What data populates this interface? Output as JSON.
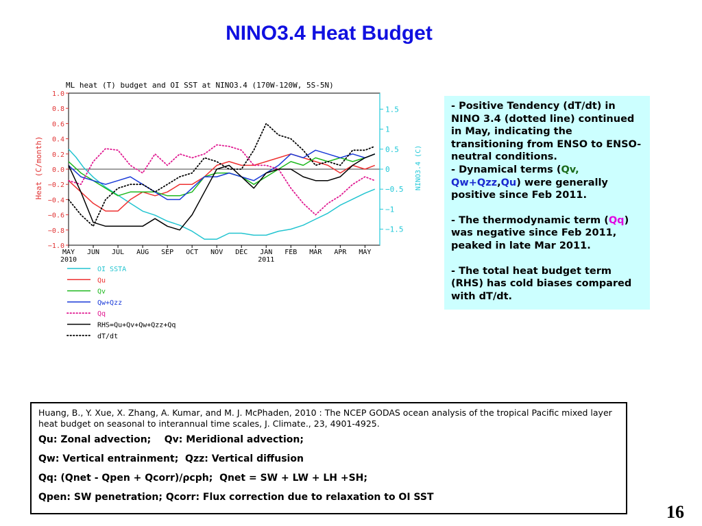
{
  "slide": {
    "title": "NINO3.4 Heat Budget",
    "page_number": "16"
  },
  "notes": {
    "p1_text": "Positive Tendency (dT/dt) in NINO 3.4 (dotted line) continued in May, indicating the transitioning from ENSO to ENSO-neutral conditions.",
    "p2_prefix": "Dynamical terms (",
    "p2_qv": "Qv,",
    "p2_qwqzz": "Qw+Qzz",
    "p2_comma": ",",
    "p2_qu": "Qu",
    "p2_suffix": ") were generally positive since Feb 2011.",
    "p3_prefix": "The thermodynamic term (",
    "p3_qq": "Qq",
    "p3_suffix": ") was negative since Feb 2011, peaked in late Mar 2011.",
    "p4_text": "The total heat budget term (RHS) has cold biases compared with dT/dt."
  },
  "reference": {
    "citation": "Huang, B., Y. Xue, X. Zhang, A. Kumar, and M. J. McPhaden, 2010 : The NCEP GODAS ocean analysis of the tropical Pacific mixed layer heat budget on seasonal to interannual time scales,  J. Climate., 23, 4901-4925.",
    "def1": "Qu: Zonal advection;    Qv: Meridional advection;",
    "def2": "Qw: Vertical entrainment;  Qzz: Vertical diffusion",
    "def3": "Qq: (Qnet - Qpen + Qcorr)/ρcph;  Qnet = SW + LW + LH +SH;",
    "def4": "Qpen: SW penetration; Qcorr: Flux correction due to relaxation to OI SST"
  },
  "chart_data": {
    "type": "line",
    "title": "ML heat (T) budget and OI SST at NINO3.4 (170W-120W, 5S-5N)",
    "ylabel_left": "Heat (C/month)",
    "ylabel_right": "NINO3.4 (C)",
    "ylim_left": [
      -1.0,
      1.0
    ],
    "yticks_left": [
      "1.0",
      "0.8",
      "0.6",
      "0.4",
      "0.2",
      "0.0",
      "-0.2",
      "-0.4",
      "-0.6",
      "-0.8",
      "-1.0"
    ],
    "ylim_right": [
      -1.9,
      1.9
    ],
    "yticks_right": [
      "1.5",
      "1",
      "0.5",
      "0",
      "-0.5",
      "-1",
      "-1.5"
    ],
    "xlim": [
      0,
      12.6
    ],
    "x_tick_labels": [
      "MAY",
      "JUN",
      "JUL",
      "AUG",
      "SEP",
      "OCT",
      "NOV",
      "DEC",
      "JAN",
      "FEB",
      "MAR",
      "APR",
      "MAY"
    ],
    "x_year_labels": [
      {
        "label": "2010",
        "at": 0
      },
      {
        "label": "2011",
        "at": 8
      }
    ],
    "grid": false,
    "legend_placement": "below",
    "colors": {
      "left_axis": "#e03030",
      "right_axis": "#20c8d8",
      "frame": "#000000",
      "zero_line": "#000000"
    },
    "series": [
      {
        "name": "OI SSTA",
        "axis": "right",
        "color": "#22c4d0",
        "style": "solid",
        "x": [
          0,
          0.3,
          0.6,
          1,
          1.5,
          2,
          2.5,
          3,
          3.5,
          4,
          4.5,
          5,
          5.5,
          6,
          6.5,
          7,
          7.5,
          8,
          8.5,
          9,
          9.5,
          10,
          10.5,
          11,
          11.5,
          12,
          12.4
        ],
        "y": [
          0.5,
          0.3,
          0.05,
          -0.2,
          -0.45,
          -0.65,
          -0.85,
          -1.05,
          -1.15,
          -1.3,
          -1.4,
          -1.55,
          -1.75,
          -1.75,
          -1.6,
          -1.6,
          -1.65,
          -1.65,
          -1.55,
          -1.5,
          -1.4,
          -1.25,
          -1.1,
          -0.9,
          -0.75,
          -0.6,
          -0.5
        ]
      },
      {
        "name": "Qu",
        "axis": "left",
        "color": "#ee3030",
        "style": "solid",
        "x": [
          0,
          0.5,
          1,
          1.5,
          2,
          2.5,
          3,
          3.5,
          4,
          4.5,
          5,
          5.5,
          6,
          6.5,
          7,
          7.5,
          8,
          8.5,
          9,
          9.5,
          10,
          10.5,
          11,
          11.5,
          12,
          12.4
        ],
        "y": [
          -0.15,
          -0.3,
          -0.45,
          -0.55,
          -0.55,
          -0.4,
          -0.3,
          -0.35,
          -0.3,
          -0.2,
          -0.2,
          -0.1,
          0.05,
          0.1,
          0.05,
          0.05,
          0.1,
          0.15,
          0.2,
          0.15,
          0.1,
          0.05,
          -0.05,
          0.05,
          0.0,
          0.05
        ]
      },
      {
        "name": "Qv",
        "axis": "left",
        "color": "#1eb81e",
        "style": "solid",
        "x": [
          0,
          0.5,
          1,
          1.5,
          2,
          2.5,
          3,
          3.5,
          4,
          4.5,
          5,
          5.5,
          6,
          6.5,
          7,
          7.5,
          8,
          8.5,
          9,
          9.5,
          10,
          10.5,
          11,
          11.5,
          12,
          12.4
        ],
        "y": [
          0.1,
          -0.05,
          -0.15,
          -0.25,
          -0.35,
          -0.3,
          -0.3,
          -0.3,
          -0.35,
          -0.35,
          -0.3,
          -0.1,
          -0.05,
          -0.05,
          -0.1,
          -0.2,
          -0.1,
          0.0,
          0.1,
          0.05,
          0.15,
          0.1,
          0.15,
          0.1,
          0.15,
          0.2
        ]
      },
      {
        "name": "Qw+Qzz",
        "axis": "left",
        "color": "#1a3ad8",
        "style": "solid",
        "x": [
          0,
          0.5,
          1,
          1.5,
          2,
          2.5,
          3,
          3.5,
          4,
          4.5,
          5,
          5.5,
          6,
          6.5,
          7,
          7.5,
          8,
          8.5,
          9,
          9.5,
          10,
          10.5,
          11,
          11.5,
          12,
          12.4
        ],
        "y": [
          0.05,
          -0.1,
          -0.15,
          -0.2,
          -0.15,
          -0.1,
          -0.2,
          -0.3,
          -0.4,
          -0.4,
          -0.25,
          -0.1,
          -0.1,
          -0.05,
          -0.1,
          -0.15,
          -0.05,
          0.05,
          0.2,
          0.15,
          0.25,
          0.2,
          0.15,
          0.2,
          0.15,
          0.2
        ]
      },
      {
        "name": "Qq",
        "axis": "left",
        "color": "#e01890",
        "style": "dotted",
        "x": [
          0,
          0.5,
          1,
          1.5,
          2,
          2.5,
          3,
          3.5,
          4,
          4.5,
          5,
          5.5,
          6,
          6.5,
          7,
          7.5,
          8,
          8.5,
          9,
          9.5,
          10,
          10.5,
          11,
          11.5,
          12,
          12.4
        ],
        "y": [
          -0.15,
          -0.2,
          0.1,
          0.27,
          0.25,
          0.05,
          -0.05,
          0.2,
          0.05,
          0.2,
          0.15,
          0.2,
          0.32,
          0.3,
          0.25,
          0.05,
          0.05,
          0.0,
          -0.25,
          -0.45,
          -0.6,
          -0.45,
          -0.35,
          -0.2,
          -0.1,
          -0.15
        ]
      },
      {
        "name": "RHS=Qu+Qv+Qw+Qzz+Qq",
        "axis": "left",
        "color": "#000000",
        "style": "solid",
        "x": [
          0,
          0.5,
          1,
          1.5,
          2,
          2.5,
          3,
          3.5,
          4,
          4.5,
          5,
          5.5,
          6,
          6.5,
          7,
          7.5,
          8,
          8.5,
          9,
          9.5,
          10,
          10.5,
          11,
          11.5,
          12,
          12.4
        ],
        "y": [
          0.05,
          -0.3,
          -0.7,
          -0.75,
          -0.75,
          -0.75,
          -0.75,
          -0.65,
          -0.75,
          -0.8,
          -0.6,
          -0.3,
          0.0,
          0.05,
          -0.1,
          -0.25,
          -0.05,
          0.0,
          0.0,
          -0.1,
          -0.15,
          -0.15,
          -0.1,
          0.05,
          0.15,
          0.2
        ]
      },
      {
        "name": "dT/dt",
        "axis": "left",
        "color": "#000000",
        "style": "dotted",
        "x": [
          0,
          0.5,
          1,
          1.5,
          2,
          2.5,
          3,
          3.5,
          4,
          4.5,
          5,
          5.5,
          6,
          6.5,
          7,
          7.5,
          8,
          8.5,
          9,
          9.5,
          10,
          10.5,
          11,
          11.5,
          12,
          12.4
        ],
        "y": [
          -0.4,
          -0.6,
          -0.75,
          -0.4,
          -0.25,
          -0.2,
          -0.2,
          -0.3,
          -0.2,
          -0.1,
          -0.05,
          0.15,
          0.1,
          0.0,
          0.0,
          0.25,
          0.6,
          0.45,
          0.4,
          0.25,
          0.05,
          0.1,
          0.05,
          0.25,
          0.25,
          0.3
        ]
      }
    ]
  }
}
